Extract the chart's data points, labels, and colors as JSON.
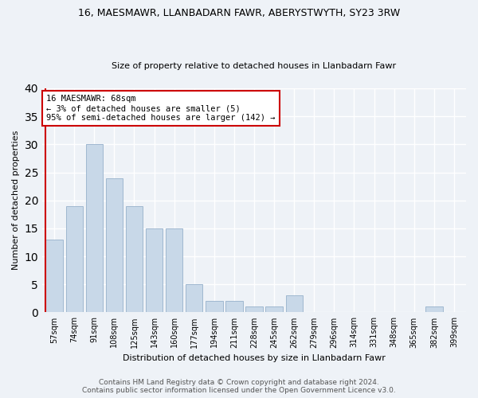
{
  "title1": "16, MAESMAWR, LLANBADARN FAWR, ABERYSTWYTH, SY23 3RW",
  "title2": "Size of property relative to detached houses in Llanbadarn Fawr",
  "xlabel": "Distribution of detached houses by size in Llanbadarn Fawr",
  "ylabel": "Number of detached properties",
  "categories": [
    "57sqm",
    "74sqm",
    "91sqm",
    "108sqm",
    "125sqm",
    "143sqm",
    "160sqm",
    "177sqm",
    "194sqm",
    "211sqm",
    "228sqm",
    "245sqm",
    "262sqm",
    "279sqm",
    "296sqm",
    "314sqm",
    "331sqm",
    "348sqm",
    "365sqm",
    "382sqm",
    "399sqm"
  ],
  "values": [
    13,
    19,
    30,
    24,
    19,
    15,
    15,
    5,
    2,
    2,
    1,
    1,
    3,
    0,
    0,
    0,
    0,
    0,
    0,
    1,
    0
  ],
  "bar_color": "#c8d8e8",
  "bar_edge_color": "#a0b8d0",
  "annotation_text_line1": "16 MAESMAWR: 68sqm",
  "annotation_text_line2": "← 3% of detached houses are smaller (5)",
  "annotation_text_line3": "95% of semi-detached houses are larger (142) →",
  "annotation_box_color": "#ffffff",
  "annotation_box_edge_color": "#cc0000",
  "vline_color": "#cc0000",
  "footnote1": "Contains HM Land Registry data © Crown copyright and database right 2024.",
  "footnote2": "Contains public sector information licensed under the Open Government Licence v3.0.",
  "bg_color": "#eef2f7",
  "plot_bg_color": "#eef2f7",
  "ylim": [
    0,
    40
  ],
  "yticks": [
    0,
    5,
    10,
    15,
    20,
    25,
    30,
    35,
    40
  ],
  "grid_color": "#ffffff",
  "title1_fontsize": 9,
  "title2_fontsize": 8,
  "xlabel_fontsize": 8,
  "ylabel_fontsize": 8,
  "tick_fontsize": 7,
  "ann_fontsize": 7.5,
  "footnote_fontsize": 6.5
}
